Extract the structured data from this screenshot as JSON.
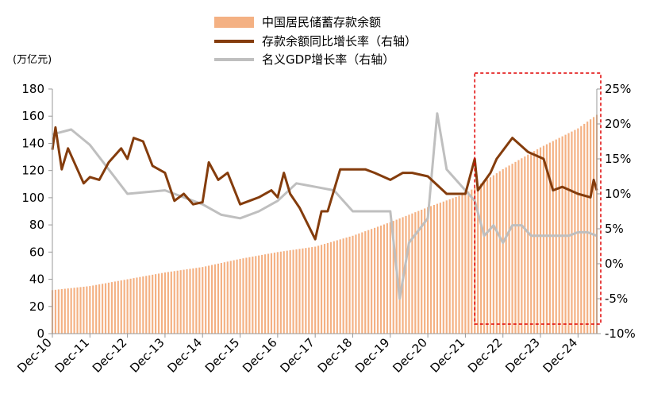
{
  "chart_data": {
    "type": "bar+line",
    "title": "",
    "left_axis_unit": "(万亿元)",
    "ylim_left": [
      0,
      180
    ],
    "yticks_left": [
      0,
      20,
      40,
      60,
      80,
      100,
      120,
      140,
      160,
      180
    ],
    "ylim_right": [
      -10,
      25
    ],
    "yticks_right": [
      "-10%",
      "-5%",
      "0%",
      "5%",
      "10%",
      "15%",
      "20%",
      "25%"
    ],
    "yticks_right_values": [
      -10,
      -5,
      0,
      5,
      10,
      15,
      20,
      25
    ],
    "x_tick_labels": [
      "Dec-10",
      "Dec-11",
      "Dec-12",
      "Dec-13",
      "Dec-14",
      "Dec-15",
      "Dec-16",
      "Dec-17",
      "Dec-18",
      "Dec-19",
      "Dec-20",
      "Dec-21",
      "Dec-22",
      "Dec-23",
      "Dec-24"
    ],
    "legend": [
      "中国居民储蓄存款余额",
      "存款余额同比增长率（右轴）",
      "名义GDP增长率（右轴）"
    ],
    "colors": {
      "bars": "#f4b183",
      "deposit_growth": "#843c0c",
      "gdp_growth": "#bfbfbf",
      "highlight_box": "#e00000"
    },
    "highlight_range": [
      "Mar-22",
      "Jun-25"
    ],
    "grid": false,
    "bars": {
      "name": "中国居民储蓄存款余额",
      "x_start": "Dec-10",
      "frequency": "monthly",
      "year_end_values": {
        "Dec-10": 32,
        "Dec-11": 35,
        "Dec-12": 40,
        "Dec-13": 45,
        "Dec-14": 49,
        "Dec-15": 55,
        "Dec-16": 60,
        "Dec-17": 64,
        "Dec-18": 72,
        "Dec-19": 82,
        "Dec-20": 93,
        "Dec-21": 103,
        "Dec-22": 121,
        "Dec-23": 137,
        "Dec-24": 151
      },
      "last_value": 161
    },
    "deposit_growth": {
      "name": "存款余额同比增长率（右轴）",
      "points": [
        [
          "Dec-10",
          16.3
        ],
        [
          "Jan-11",
          19.5
        ],
        [
          "Mar-11",
          13.5
        ],
        [
          "May-11",
          16.5
        ],
        [
          "Aug-11",
          13.5
        ],
        [
          "Oct-11",
          11.5
        ],
        [
          "Dec-11",
          12.4
        ],
        [
          "Mar-12",
          12.0
        ],
        [
          "Jun-12",
          14.5
        ],
        [
          "Oct-12",
          16.5
        ],
        [
          "Dec-12",
          15.0
        ],
        [
          "Feb-13",
          18.0
        ],
        [
          "May-13",
          17.5
        ],
        [
          "Aug-13",
          14.0
        ],
        [
          "Dec-13",
          13.0
        ],
        [
          "Mar-14",
          9.0
        ],
        [
          "Jun-14",
          10.0
        ],
        [
          "Sep-14",
          8.5
        ],
        [
          "Dec-14",
          8.8
        ],
        [
          "Feb-15",
          14.5
        ],
        [
          "May-15",
          12.0
        ],
        [
          "Aug-15",
          13.0
        ],
        [
          "Dec-15",
          8.5
        ],
        [
          "Mar-16",
          9.0
        ],
        [
          "Jun-16",
          9.5
        ],
        [
          "Oct-16",
          10.5
        ],
        [
          "Dec-16",
          9.5
        ],
        [
          "Feb-17",
          13.0
        ],
        [
          "Apr-17",
          10.0
        ],
        [
          "Jul-17",
          8.0
        ],
        [
          "Dec-17",
          3.5
        ],
        [
          "Feb-18",
          7.5
        ],
        [
          "Apr-18",
          7.5
        ],
        [
          "Aug-18",
          13.5
        ],
        [
          "Dec-18",
          13.5
        ],
        [
          "Apr-19",
          13.5
        ],
        [
          "Jul-19",
          13.0
        ],
        [
          "Dec-19",
          12.0
        ],
        [
          "Apr-20",
          13.0
        ],
        [
          "Jul-20",
          13.0
        ],
        [
          "Dec-20",
          12.5
        ],
        [
          "Jun-21",
          10.0
        ],
        [
          "Dec-21",
          10.0
        ],
        [
          "Mar-22",
          15.0
        ],
        [
          "Apr-22",
          10.5
        ],
        [
          "Aug-22",
          13.0
        ],
        [
          "Oct-22",
          15.0
        ],
        [
          "Mar-23",
          18.0
        ],
        [
          "Aug-23",
          16.0
        ],
        [
          "Jan-24",
          15.0
        ],
        [
          "Apr-24",
          10.5
        ],
        [
          "Jul-24",
          11.0
        ],
        [
          "Dec-24",
          10.0
        ],
        [
          "Apr-25",
          9.5
        ],
        [
          "May-25",
          12.0
        ],
        [
          "Jun-25",
          10.5
        ]
      ]
    },
    "gdp_growth": {
      "name": "名义GDP增长率（右轴）",
      "points": [
        [
          "Dec-10",
          18.5
        ],
        [
          "Jun-11",
          19.2
        ],
        [
          "Dec-11",
          17.0
        ],
        [
          "Dec-12",
          10.0
        ],
        [
          "Dec-13",
          10.5
        ],
        [
          "Dec-14",
          8.5
        ],
        [
          "Jun-15",
          7.0
        ],
        [
          "Dec-15",
          6.5
        ],
        [
          "Jun-16",
          7.5
        ],
        [
          "Dec-16",
          9.0
        ],
        [
          "Jun-17",
          11.5
        ],
        [
          "Dec-17",
          11.0
        ],
        [
          "Jun-18",
          10.5
        ],
        [
          "Dec-18",
          7.5
        ],
        [
          "Jun-19",
          7.5
        ],
        [
          "Dec-19",
          7.5
        ],
        [
          "Mar-20",
          -5.0
        ],
        [
          "Jun-20",
          3.0
        ],
        [
          "Dec-20",
          6.5
        ],
        [
          "Mar-21",
          21.5
        ],
        [
          "Jun-21",
          13.5
        ],
        [
          "Dec-21",
          10.5
        ],
        [
          "Mar-22",
          9.0
        ],
        [
          "Jun-22",
          4.0
        ],
        [
          "Sep-22",
          5.5
        ],
        [
          "Dec-22",
          3.0
        ],
        [
          "Mar-23",
          5.5
        ],
        [
          "Jun-23",
          5.5
        ],
        [
          "Sep-23",
          4.0
        ],
        [
          "Dec-23",
          4.0
        ],
        [
          "Jun-24",
          4.0
        ],
        [
          "Sep-24",
          4.0
        ],
        [
          "Dec-24",
          4.5
        ],
        [
          "Mar-25",
          4.5
        ],
        [
          "Jun-25",
          4.0
        ]
      ]
    }
  }
}
